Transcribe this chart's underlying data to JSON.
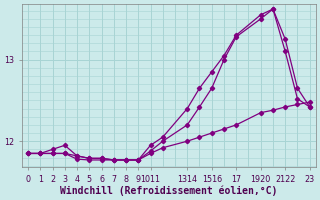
{
  "xlabel": "Windchill (Refroidissement éolien,°C)",
  "bg_color": "#cceaea",
  "grid_color": "#a8d4d4",
  "line_color": "#800080",
  "xlim": [
    -0.5,
    23.5
  ],
  "ylim": [
    11.68,
    13.68
  ],
  "yticks": [
    12,
    13
  ],
  "ytick_labels": [
    "12",
    "13"
  ],
  "xtick_pos": [
    0,
    1,
    2,
    3,
    4,
    5,
    6,
    7,
    8,
    9,
    10,
    13,
    15,
    17,
    19,
    21,
    23
  ],
  "xtick_labels": [
    "0",
    "1",
    "2",
    "3",
    "4",
    "5",
    "6",
    "7",
    "8",
    "9",
    "1011",
    "1314",
    "1516",
    "17",
    "1920",
    "2122",
    "23"
  ],
  "series1_x": [
    0,
    1,
    2,
    3,
    4,
    5,
    6,
    7,
    8,
    9,
    10,
    11,
    13,
    14,
    15,
    16,
    17,
    19,
    20,
    21,
    22,
    23
  ],
  "series1_y": [
    11.85,
    11.85,
    11.85,
    11.85,
    11.78,
    11.77,
    11.77,
    11.77,
    11.77,
    11.77,
    11.85,
    11.92,
    12.0,
    12.05,
    12.1,
    12.15,
    12.2,
    12.35,
    12.38,
    12.42,
    12.45,
    12.48
  ],
  "series2_x": [
    0,
    1,
    2,
    3,
    4,
    5,
    6,
    7,
    8,
    9,
    10,
    11,
    13,
    14,
    15,
    16,
    17,
    19,
    20,
    21,
    22,
    23
  ],
  "series2_y": [
    11.85,
    11.85,
    11.9,
    11.95,
    11.82,
    11.79,
    11.79,
    11.77,
    11.77,
    11.77,
    11.95,
    12.05,
    12.4,
    12.65,
    12.85,
    13.05,
    13.3,
    13.55,
    13.62,
    13.1,
    12.52,
    12.42
  ],
  "series3_x": [
    0,
    1,
    2,
    3,
    4,
    5,
    6,
    7,
    8,
    9,
    10,
    11,
    13,
    14,
    15,
    16,
    17,
    19,
    20,
    21,
    22,
    23
  ],
  "series3_y": [
    11.85,
    11.85,
    11.85,
    11.85,
    11.82,
    11.79,
    11.79,
    11.77,
    11.77,
    11.77,
    11.88,
    12.0,
    12.2,
    12.42,
    12.65,
    13.0,
    13.28,
    13.5,
    13.62,
    13.25,
    12.65,
    12.42
  ],
  "marker": "D",
  "markersize": 2.2,
  "linewidth": 0.9,
  "tick_fontsize": 5.8,
  "label_fontsize": 7.0
}
